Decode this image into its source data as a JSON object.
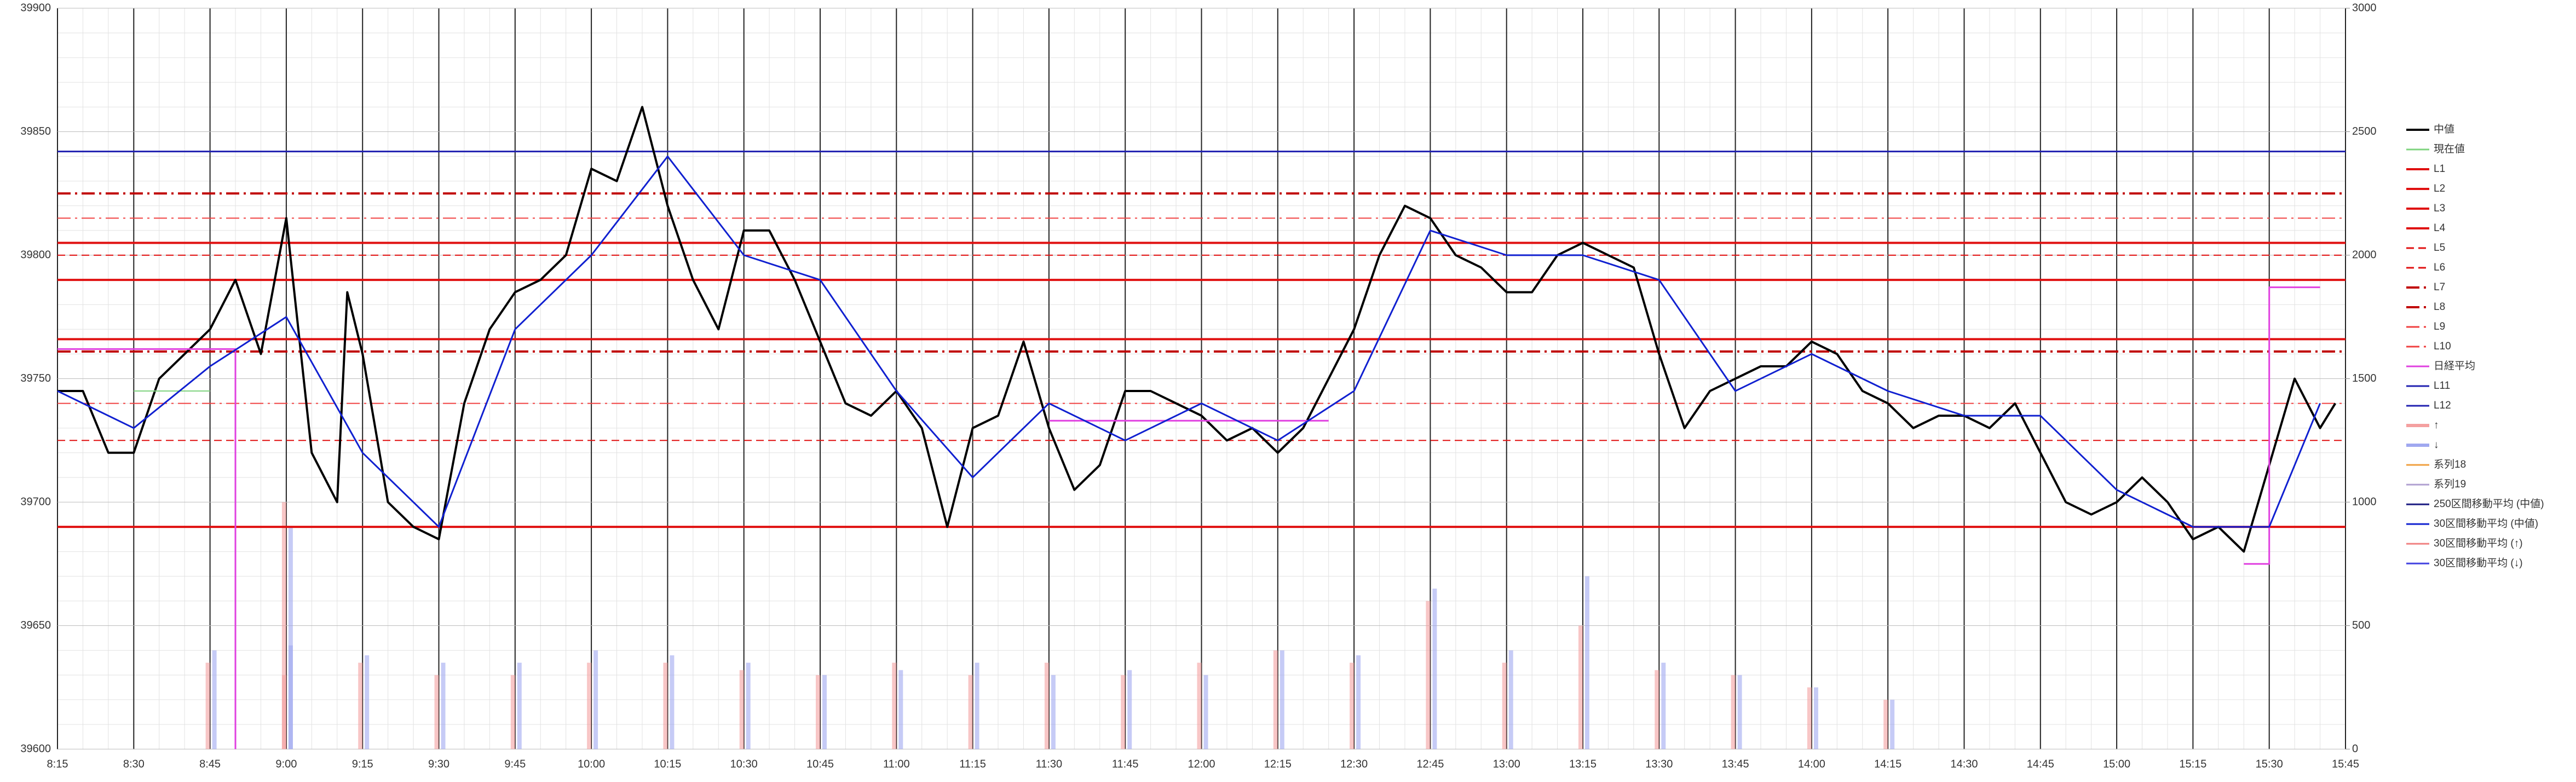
{
  "chart_data": {
    "type": "line",
    "xlim": [
      "8:15",
      "15:45"
    ],
    "xticks": [
      "8:15",
      "8:30",
      "8:45",
      "9:00",
      "9:15",
      "9:30",
      "9:45",
      "10:00",
      "10:15",
      "10:30",
      "10:45",
      "11:00",
      "11:15",
      "11:30",
      "11:45",
      "12:00",
      "12:15",
      "12:30",
      "12:45",
      "13:00",
      "13:15",
      "13:30",
      "13:45",
      "14:00",
      "14:15",
      "14:30",
      "14:45",
      "15:00",
      "15:15",
      "15:30",
      "15:45"
    ],
    "ylim": [
      39600,
      39900
    ],
    "yticks": [
      39600,
      39650,
      39700,
      39750,
      39800,
      39850,
      39900
    ],
    "y2lim": [
      0,
      3000
    ],
    "y2ticks": [
      0,
      500,
      1000,
      1500,
      2000,
      2500,
      3000
    ],
    "grid": true,
    "minor_grid": true,
    "legend": "right",
    "series": [
      {
        "name": "中値",
        "kind": "line",
        "color": "#000000",
        "width": 4,
        "x": [
          "8:15",
          "8:20",
          "8:25",
          "8:30",
          "8:35",
          "8:40",
          "8:45",
          "8:50",
          "8:55",
          "9:00",
          "9:05",
          "9:10",
          "9:12",
          "9:15",
          "9:20",
          "9:25",
          "9:30",
          "9:35",
          "9:40",
          "9:45",
          "9:50",
          "9:55",
          "10:00",
          "10:05",
          "10:10",
          "10:15",
          "10:20",
          "10:25",
          "10:30",
          "10:35",
          "10:40",
          "10:45",
          "10:50",
          "10:55",
          "11:00",
          "11:05",
          "11:10",
          "11:15",
          "11:20",
          "11:25",
          "11:30",
          "11:35",
          "11:40",
          "11:45",
          "11:50",
          "11:55",
          "12:00",
          "12:05",
          "12:10",
          "12:15",
          "12:20",
          "12:25",
          "12:30",
          "12:35",
          "12:40",
          "12:45",
          "12:50",
          "12:55",
          "13:00",
          "13:05",
          "13:10",
          "13:15",
          "13:20",
          "13:25",
          "13:30",
          "13:35",
          "13:40",
          "13:45",
          "13:50",
          "13:55",
          "14:00",
          "14:05",
          "14:10",
          "14:15",
          "14:20",
          "14:25",
          "14:30",
          "14:35",
          "14:40",
          "14:45",
          "14:50",
          "14:55",
          "15:00",
          "15:05",
          "15:10",
          "15:15",
          "15:20",
          "15:25",
          "15:30",
          "15:35",
          "15:40",
          "15:43"
        ],
        "values": [
          39745,
          39745,
          39720,
          39720,
          39750,
          39760,
          39770,
          39790,
          39760,
          39815,
          39720,
          39700,
          39785,
          39760,
          39700,
          39690,
          39685,
          39740,
          39770,
          39785,
          39790,
          39800,
          39835,
          39830,
          39860,
          39820,
          39790,
          39770,
          39810,
          39810,
          39790,
          39765,
          39740,
          39735,
          39745,
          39730,
          39690,
          39730,
          39735,
          39765,
          39730,
          39705,
          39715,
          39745,
          39745,
          39740,
          39735,
          39725,
          39730,
          39720,
          39730,
          39750,
          39770,
          39800,
          39820,
          39815,
          39800,
          39795,
          39785,
          39785,
          39800,
          39805,
          39800,
          39795,
          39760,
          39730,
          39745,
          39750,
          39755,
          39755,
          39765,
          39760,
          39745,
          39740,
          39730,
          39735,
          39735,
          39730,
          39740,
          39720,
          39700,
          39695,
          39700,
          39710,
          39700,
          39685,
          39690,
          39680,
          39715,
          39750,
          39730,
          39740
        ]
      },
      {
        "name": "現在値",
        "kind": "line",
        "color": "#7fd37f",
        "width": 2,
        "x": [
          "8:30",
          "8:45"
        ],
        "values": [
          39745,
          39745
        ]
      },
      {
        "name": "L1",
        "kind": "hline",
        "color": "#e01010",
        "width": 4,
        "dash": "solid",
        "value": 39805
      },
      {
        "name": "L2",
        "kind": "hline",
        "color": "#e01010",
        "width": 4,
        "dash": "solid",
        "value": 39790
      },
      {
        "name": "L3",
        "kind": "hline",
        "color": "#e01010",
        "width": 4,
        "dash": "solid",
        "value": 39766
      },
      {
        "name": "L4",
        "kind": "hline",
        "color": "#e01010",
        "width": 4,
        "dash": "solid",
        "value": 39690
      },
      {
        "name": "L5",
        "kind": "hline",
        "color": "#e01010",
        "width": 2,
        "dash": "dashed",
        "value": 39800
      },
      {
        "name": "L6",
        "kind": "hline",
        "color": "#e01010",
        "width": 2,
        "dash": "dashed",
        "value": 39725
      },
      {
        "name": "L7",
        "kind": "hline",
        "color": "#c00000",
        "width": 4,
        "dash": "dashdot",
        "value": 39825
      },
      {
        "name": "L8",
        "kind": "hline",
        "color": "#c00000",
        "width": 4,
        "dash": "dashdot",
        "value": 39761
      },
      {
        "name": "L9",
        "kind": "hline",
        "color": "#f04040",
        "width": 2,
        "dash": "dashdot",
        "value": 39815
      },
      {
        "name": "L10",
        "kind": "hline",
        "color": "#f04040",
        "width": 2,
        "dash": "dashdot",
        "value": 39740
      },
      {
        "name": "日経平均",
        "kind": "line",
        "color": "#e040e0",
        "width": 3,
        "x": [
          "8:15",
          "8:45",
          "8:50",
          "8:50",
          null,
          "11:30",
          "12:25",
          null,
          "15:25",
          "15:30",
          "15:30",
          "15:40"
        ],
        "values": [
          39762,
          39762,
          39762,
          39600,
          null,
          39733,
          39733,
          null,
          39675,
          39675,
          39787,
          39787
        ]
      },
      {
        "name": "L11",
        "kind": "hline",
        "color": "#2020b0",
        "width": 3,
        "dash": "solid",
        "value": 39842
      },
      {
        "name": "L12",
        "kind": "hline",
        "color": "#2020b0",
        "width": 3,
        "dash": "solid",
        "value": null
      },
      {
        "name": "↑",
        "kind": "bar",
        "axis": "y2",
        "color": "#f4a0a0",
        "x": [
          "8:45",
          "9:00",
          "9:00",
          "9:15",
          "9:30",
          "9:45",
          "10:00",
          "10:15",
          "10:30",
          "10:45",
          "11:00",
          "11:15",
          "11:30",
          "11:45",
          "12:00",
          "12:15",
          "12:30",
          "12:45",
          "13:00",
          "13:15",
          "13:30",
          "13:45",
          "14:00",
          "14:15"
        ],
        "values": [
          350,
          300,
          1000,
          350,
          300,
          300,
          350,
          350,
          320,
          300,
          350,
          300,
          350,
          300,
          350,
          400,
          350,
          600,
          350,
          500,
          320,
          300,
          250,
          200
        ]
      },
      {
        "name": "↓",
        "kind": "bar",
        "axis": "y2",
        "color": "#a0a8f0",
        "x": [
          "8:45",
          "9:00",
          "9:00",
          "9:15",
          "9:30",
          "9:45",
          "10:00",
          "10:15",
          "10:30",
          "10:45",
          "11:00",
          "11:15",
          "11:30",
          "11:45",
          "12:00",
          "12:15",
          "12:30",
          "12:45",
          "13:00",
          "13:15",
          "13:30",
          "13:45",
          "14:00",
          "14:15"
        ],
        "values": [
          400,
          420,
          900,
          380,
          350,
          350,
          400,
          380,
          350,
          300,
          320,
          350,
          300,
          320,
          300,
          400,
          380,
          650,
          400,
          700,
          350,
          300,
          250,
          200
        ]
      },
      {
        "name": "系列18",
        "kind": "line",
        "color": "#f0a040",
        "width": 2,
        "x": [],
        "values": []
      },
      {
        "name": "系列19",
        "kind": "line",
        "color": "#b0a0d0",
        "width": 2,
        "x": [],
        "values": []
      },
      {
        "name": "250区間移動平均 (中値)",
        "kind": "line",
        "color": "#1a1a80",
        "width": 3,
        "x": [],
        "values": []
      },
      {
        "name": "30区間移動平均 (中値)",
        "kind": "line",
        "color": "#1020d0",
        "width": 3,
        "x": [
          "8:15",
          "8:30",
          "8:45",
          "9:00",
          "9:15",
          "9:30",
          "9:45",
          "10:00",
          "10:15",
          "10:30",
          "10:45",
          "11:00",
          "11:15",
          "11:30",
          "11:45",
          "12:00",
          "12:15",
          "12:30",
          "12:45",
          "13:00",
          "13:15",
          "13:30",
          "13:45",
          "14:00",
          "14:15",
          "14:30",
          "14:45",
          "15:00",
          "15:15",
          "15:30",
          "15:40"
        ],
        "values": [
          39745,
          39730,
          39755,
          39775,
          39720,
          39690,
          39770,
          39800,
          39840,
          39800,
          39790,
          39745,
          39710,
          39740,
          39725,
          39740,
          39725,
          39745,
          39810,
          39800,
          39800,
          39790,
          39745,
          39760,
          39745,
          39735,
          39735,
          39705,
          39690,
          39690,
          39740
        ]
      },
      {
        "name": "30区間移動平均 (↑)",
        "kind": "line",
        "color": "#f08080",
        "width": 2,
        "x": [],
        "values": []
      },
      {
        "name": "30区間移動平均 (↓)",
        "kind": "line",
        "color": "#4040e0",
        "width": 2,
        "x": [],
        "values": []
      }
    ]
  }
}
